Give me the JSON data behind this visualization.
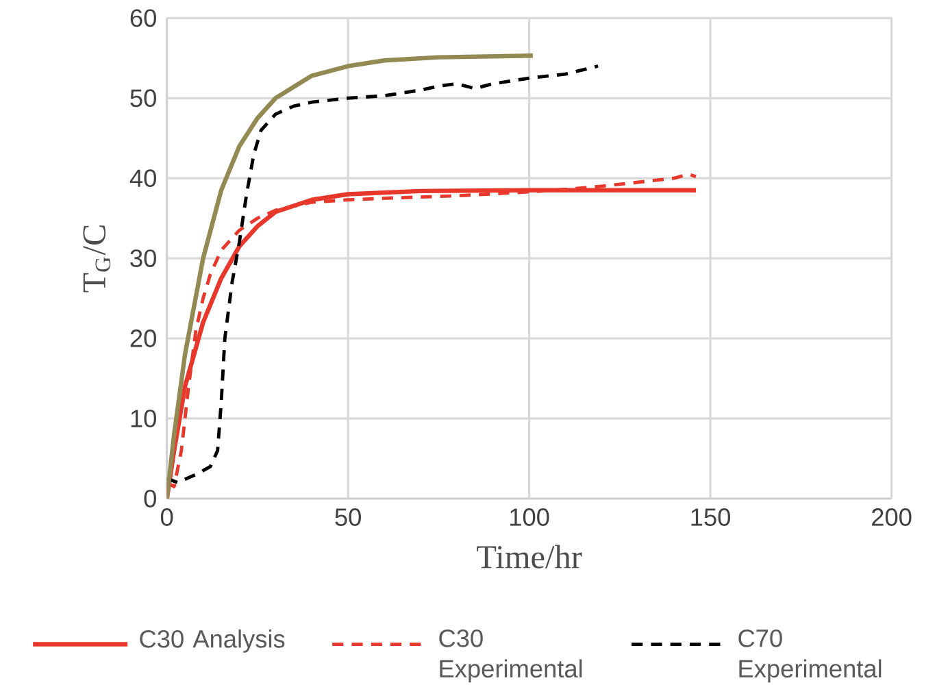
{
  "chart_data": {
    "type": "line",
    "xlabel": "Time/hr",
    "ylabel": "T$_{G}$/C",
    "xlim": [
      0,
      200
    ],
    "ylim": [
      0,
      60
    ],
    "xticks": [
      0,
      50,
      100,
      150,
      200
    ],
    "yticks": [
      0,
      10,
      20,
      30,
      40,
      50,
      60
    ],
    "grid": true,
    "legend": "bottom",
    "marker": "none",
    "series": [
      {
        "name": "C30 Analysis",
        "color": "#e8382c",
        "line_style": "solid",
        "x": [
          0,
          2,
          5,
          10,
          15,
          20,
          25,
          30,
          40,
          50,
          70,
          100,
          146
        ],
        "values": [
          0,
          6,
          14,
          22,
          27.5,
          31.5,
          34,
          35.8,
          37.3,
          38,
          38.4,
          38.5,
          38.5
        ]
      },
      {
        "name": "C30 Experimental",
        "color": "#e8382c",
        "line_style": "dashed",
        "x": [
          0,
          2,
          4,
          6,
          8,
          10,
          12,
          15,
          20,
          25,
          30,
          40,
          50,
          60,
          80,
          100,
          110,
          120,
          130,
          140,
          144,
          146
        ],
        "values": [
          2,
          1.5,
          6,
          14,
          21,
          25,
          28,
          31,
          33.5,
          35,
          36,
          37,
          37.3,
          37.5,
          37.8,
          38.3,
          38.6,
          39,
          39.5,
          40,
          40.5,
          40.2
        ]
      },
      {
        "name": "C70 Experimental",
        "color": "#000000",
        "line_style": "dashed",
        "x": [
          0,
          3,
          8,
          12,
          14,
          15,
          16,
          18,
          20,
          22,
          24,
          26,
          30,
          35,
          40,
          50,
          60,
          70,
          75,
          80,
          85,
          90,
          100,
          110,
          119
        ],
        "values": [
          2.5,
          2,
          3,
          4,
          6,
          12,
          20,
          27,
          32,
          38,
          43,
          46,
          48,
          49,
          49.5,
          50,
          50.3,
          51,
          51.5,
          51.8,
          51.2,
          51.8,
          52.5,
          53,
          54
        ]
      },
      {
        "color": "#938953",
        "line_style": "solid",
        "x": [
          0,
          2,
          5,
          10,
          15,
          20,
          25,
          30,
          40,
          50,
          60,
          75,
          101
        ],
        "values": [
          0,
          8,
          18,
          30,
          38.5,
          44,
          47.5,
          50,
          52.8,
          54,
          54.7,
          55.1,
          55.3
        ]
      }
    ]
  }
}
